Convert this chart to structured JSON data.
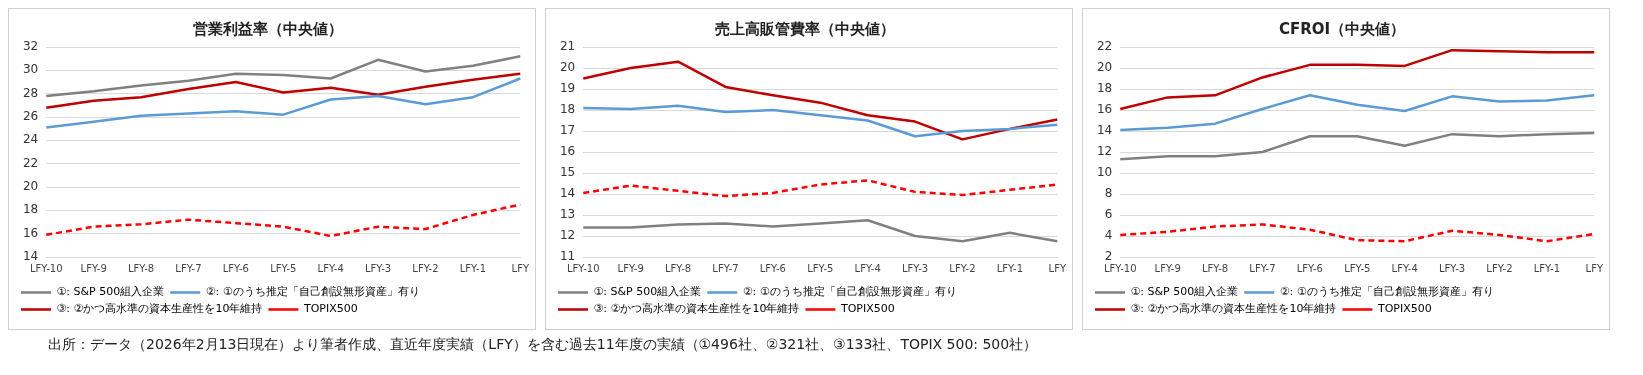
{
  "chart_data": [
    {
      "type": "line",
      "title": "営業利益率（中央値）",
      "categories": [
        "LFY-10",
        "LFY-9",
        "LFY-8",
        "LFY-7",
        "LFY-6",
        "LFY-5",
        "LFY-4",
        "LFY-3",
        "LFY-2",
        "LFY-1",
        "LFY"
      ],
      "ylim": [
        14,
        32
      ],
      "yticks": [
        14,
        16,
        18,
        20,
        22,
        24,
        26,
        28,
        30,
        32
      ],
      "grid": "y",
      "legend": "bottom",
      "marker": "none",
      "series": [
        {
          "name": "①: S&P 500組入企業",
          "color": "#808080",
          "values": [
            27.8,
            28.2,
            28.7,
            29.1,
            29.7,
            29.6,
            29.3,
            30.9,
            29.9,
            30.4,
            31.2
          ]
        },
        {
          "name": "②: ①のうち推定「自己創設無形資産」有り",
          "color": "#5b9bd5",
          "values": [
            25.1,
            25.6,
            26.1,
            26.3,
            26.5,
            26.2,
            27.5,
            27.8,
            27.1,
            27.7,
            29.3
          ]
        },
        {
          "name": "③: ②かつ高水準の資本生産性を10年維持",
          "color": "#c00000",
          "values": [
            26.8,
            27.4,
            27.7,
            28.4,
            29.0,
            28.1,
            28.5,
            27.9,
            28.6,
            29.2,
            29.7
          ]
        },
        {
          "name": "TOPIX500",
          "color": "#ff0000",
          "line_style": "dashed",
          "values": [
            15.9,
            16.6,
            16.8,
            17.2,
            16.9,
            16.6,
            15.8,
            16.6,
            16.4,
            17.6,
            18.5
          ]
        }
      ],
      "annotations": [
        "出所：データ（2026年2月13日現在）より筆者作成、直近年度実績（LFY）を含む過去11年度の実績（①496社、②321社、③133社、TOPIX 500: 500社）"
      ]
    },
    {
      "type": "line",
      "title": "売上高販管費率（中央値）",
      "categories": [
        "LFY-10",
        "LFY-9",
        "LFY-8",
        "LFY-7",
        "LFY-6",
        "LFY-5",
        "LFY-4",
        "LFY-3",
        "LFY-2",
        "LFY-1",
        "LFY"
      ],
      "ylim": [
        11,
        21
      ],
      "yticks": [
        11,
        12,
        13,
        14,
        15,
        16,
        17,
        18,
        19,
        20,
        21
      ],
      "grid": "y",
      "legend": "bottom",
      "marker": "none",
      "series": [
        {
          "name": "①: S&P 500組入企業",
          "color": "#808080",
          "values": [
            12.4,
            12.4,
            12.55,
            12.6,
            12.45,
            12.6,
            12.75,
            12.0,
            11.75,
            12.15,
            11.75
          ]
        },
        {
          "name": "②: ①のうち推定「自己創設無形資産」有り",
          "color": "#5b9bd5",
          "values": [
            18.1,
            18.05,
            18.2,
            17.9,
            18.0,
            17.75,
            17.5,
            16.75,
            17.0,
            17.1,
            17.3
          ]
        },
        {
          "name": "③: ②かつ高水準の資本生産性を10年維持",
          "color": "#c00000",
          "values": [
            19.5,
            20.0,
            20.3,
            19.1,
            18.7,
            18.35,
            17.75,
            17.45,
            16.6,
            17.1,
            17.55
          ]
        },
        {
          "name": "TOPIX500",
          "color": "#ff0000",
          "line_style": "dashed",
          "values": [
            14.05,
            14.4,
            14.15,
            13.9,
            14.05,
            14.45,
            14.65,
            14.1,
            13.95,
            14.2,
            14.45
          ]
        }
      ]
    },
    {
      "type": "line",
      "title": "CFROI（中央値）",
      "categories": [
        "LFY-10",
        "LFY-9",
        "LFY-8",
        "LFY-7",
        "LFY-6",
        "LFY-5",
        "LFY-4",
        "LFY-3",
        "LFY-2",
        "LFY-1",
        "LFY"
      ],
      "ylim": [
        2,
        22
      ],
      "yticks": [
        2,
        4,
        6,
        8,
        10,
        12,
        14,
        16,
        18,
        20,
        22
      ],
      "grid": "y",
      "legend": "bottom",
      "marker": "none",
      "series": [
        {
          "name": "①: S&P 500組入企業",
          "color": "#808080",
          "values": [
            11.3,
            11.6,
            11.6,
            12.0,
            13.5,
            13.5,
            12.6,
            13.7,
            13.5,
            13.7,
            13.8
          ]
        },
        {
          "name": "②: ①のうち推定「自己創設無形資産」有り",
          "color": "#5b9bd5",
          "values": [
            14.1,
            14.3,
            14.7,
            16.1,
            17.4,
            16.5,
            15.9,
            17.3,
            16.8,
            16.9,
            17.4
          ]
        },
        {
          "name": "③: ②かつ高水準の資本生産性を10年維持",
          "color": "#c00000",
          "values": [
            16.1,
            17.2,
            17.4,
            19.1,
            20.3,
            20.3,
            20.2,
            21.7,
            21.6,
            21.5,
            21.5
          ]
        },
        {
          "name": "TOPIX500",
          "color": "#ff0000",
          "line_style": "dashed",
          "values": [
            4.1,
            4.4,
            4.9,
            5.1,
            4.6,
            3.6,
            3.5,
            4.5,
            4.1,
            3.5,
            4.2
          ]
        }
      ]
    }
  ]
}
